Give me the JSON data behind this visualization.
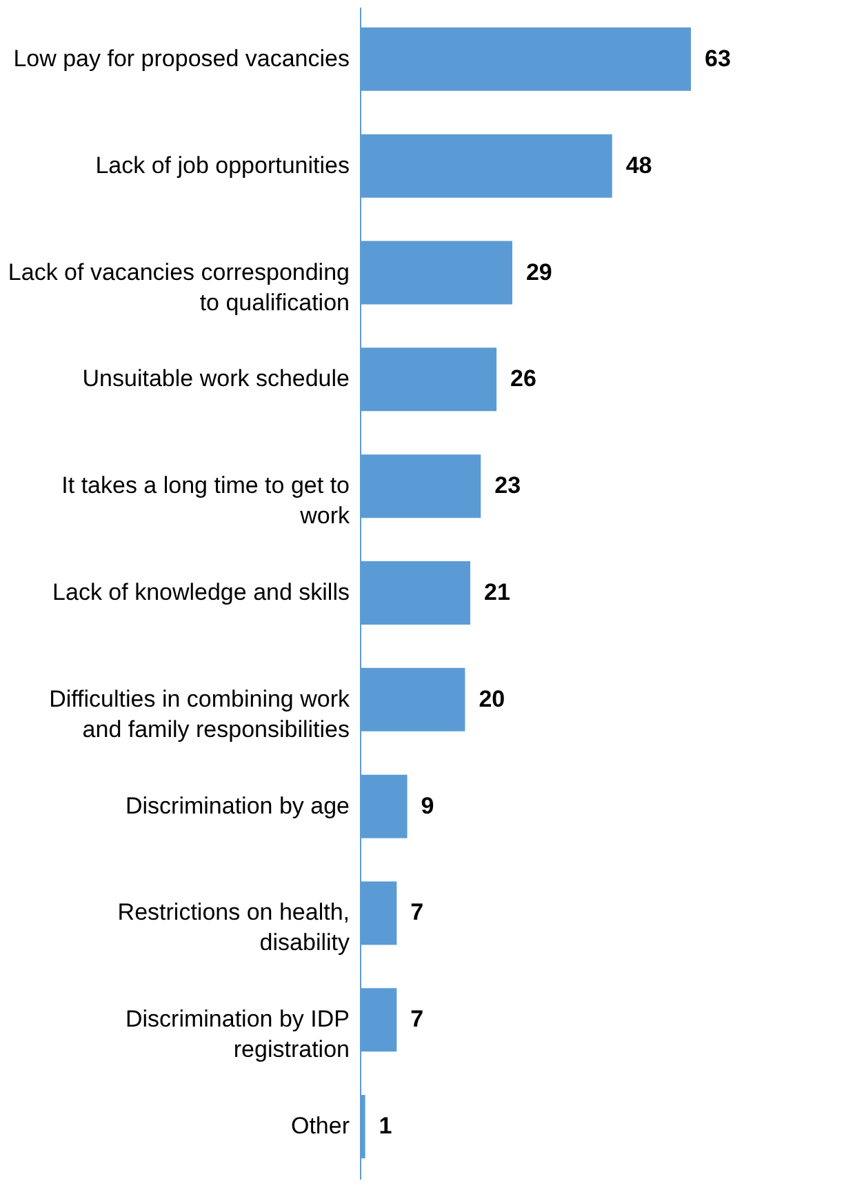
{
  "chart_data": {
    "type": "bar",
    "orientation": "horizontal",
    "data_labels": true,
    "categories": [
      "Low pay for proposed vacancies",
      "Lack of job opportunities",
      "Lack of vacancies corresponding to qualification",
      "Unsuitable work schedule",
      "It takes a long time to get to work",
      "Lack of knowledge and skills",
      "Difficulties in combining work and family responsibilities",
      "Discrimination by age",
      "Restrictions on health, disability",
      "Discrimination by IDP registration",
      "Other"
    ],
    "values": [
      63,
      48,
      29,
      26,
      23,
      21,
      20,
      9,
      7,
      7,
      1
    ],
    "color": "#5b9bd5"
  }
}
